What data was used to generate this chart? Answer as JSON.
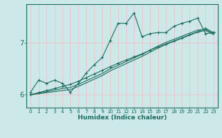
{
  "xlabel": "Humidex (Indice chaleur)",
  "xlim": [
    -0.5,
    23.5
  ],
  "ylim": [
    5.75,
    7.75
  ],
  "yticks": [
    6,
    7
  ],
  "xticks": [
    0,
    1,
    2,
    3,
    4,
    5,
    6,
    7,
    8,
    9,
    10,
    11,
    12,
    13,
    14,
    15,
    16,
    17,
    18,
    19,
    20,
    21,
    22,
    23
  ],
  "bg_color": "#cce8e8",
  "line_color": "#1a6b5e",
  "grid_color": "#e8c8c8",
  "curves": [
    {
      "x": [
        0,
        1,
        2,
        3,
        4,
        5,
        6,
        7,
        8,
        9,
        10,
        11,
        12,
        13,
        14,
        15,
        16,
        17,
        18,
        19,
        20,
        21,
        22,
        23
      ],
      "y": [
        6.05,
        6.28,
        6.22,
        6.28,
        6.22,
        6.05,
        6.22,
        6.42,
        6.58,
        6.72,
        7.05,
        7.38,
        7.38,
        7.58,
        7.12,
        7.18,
        7.2,
        7.2,
        7.32,
        7.38,
        7.42,
        7.48,
        7.18,
        7.2
      ],
      "markers": true
    },
    {
      "x": [
        0,
        1,
        2,
        3,
        4,
        5,
        6,
        7,
        8,
        9,
        10,
        11,
        12,
        13,
        14,
        15,
        16,
        17,
        18,
        19,
        20,
        21,
        22,
        23
      ],
      "y": [
        6.0,
        6.04,
        6.08,
        6.12,
        6.16,
        6.2,
        6.26,
        6.33,
        6.4,
        6.47,
        6.54,
        6.61,
        6.67,
        6.73,
        6.79,
        6.86,
        6.92,
        6.98,
        7.04,
        7.1,
        7.16,
        7.22,
        7.28,
        7.2
      ],
      "markers": true
    },
    {
      "x": [
        0,
        1,
        2,
        3,
        4,
        5,
        6,
        7,
        8,
        9,
        10,
        11,
        12,
        13,
        14,
        15,
        16,
        17,
        18,
        19,
        20,
        21,
        22,
        23
      ],
      "y": [
        6.0,
        6.03,
        6.06,
        6.09,
        6.12,
        6.14,
        6.2,
        6.27,
        6.34,
        6.41,
        6.5,
        6.57,
        6.64,
        6.71,
        6.78,
        6.86,
        6.94,
        7.01,
        7.07,
        7.13,
        7.19,
        7.25,
        7.26,
        7.18
      ],
      "markers": false
    },
    {
      "x": [
        0,
        1,
        2,
        3,
        4,
        5,
        6,
        7,
        8,
        9,
        10,
        11,
        12,
        13,
        14,
        15,
        16,
        17,
        18,
        19,
        20,
        21,
        22,
        23
      ],
      "y": [
        6.0,
        6.02,
        6.04,
        6.06,
        6.08,
        6.1,
        6.16,
        6.23,
        6.3,
        6.37,
        6.46,
        6.53,
        6.6,
        6.67,
        6.74,
        6.82,
        6.9,
        6.97,
        7.03,
        7.09,
        7.15,
        7.21,
        7.24,
        7.16
      ],
      "markers": false
    }
  ]
}
